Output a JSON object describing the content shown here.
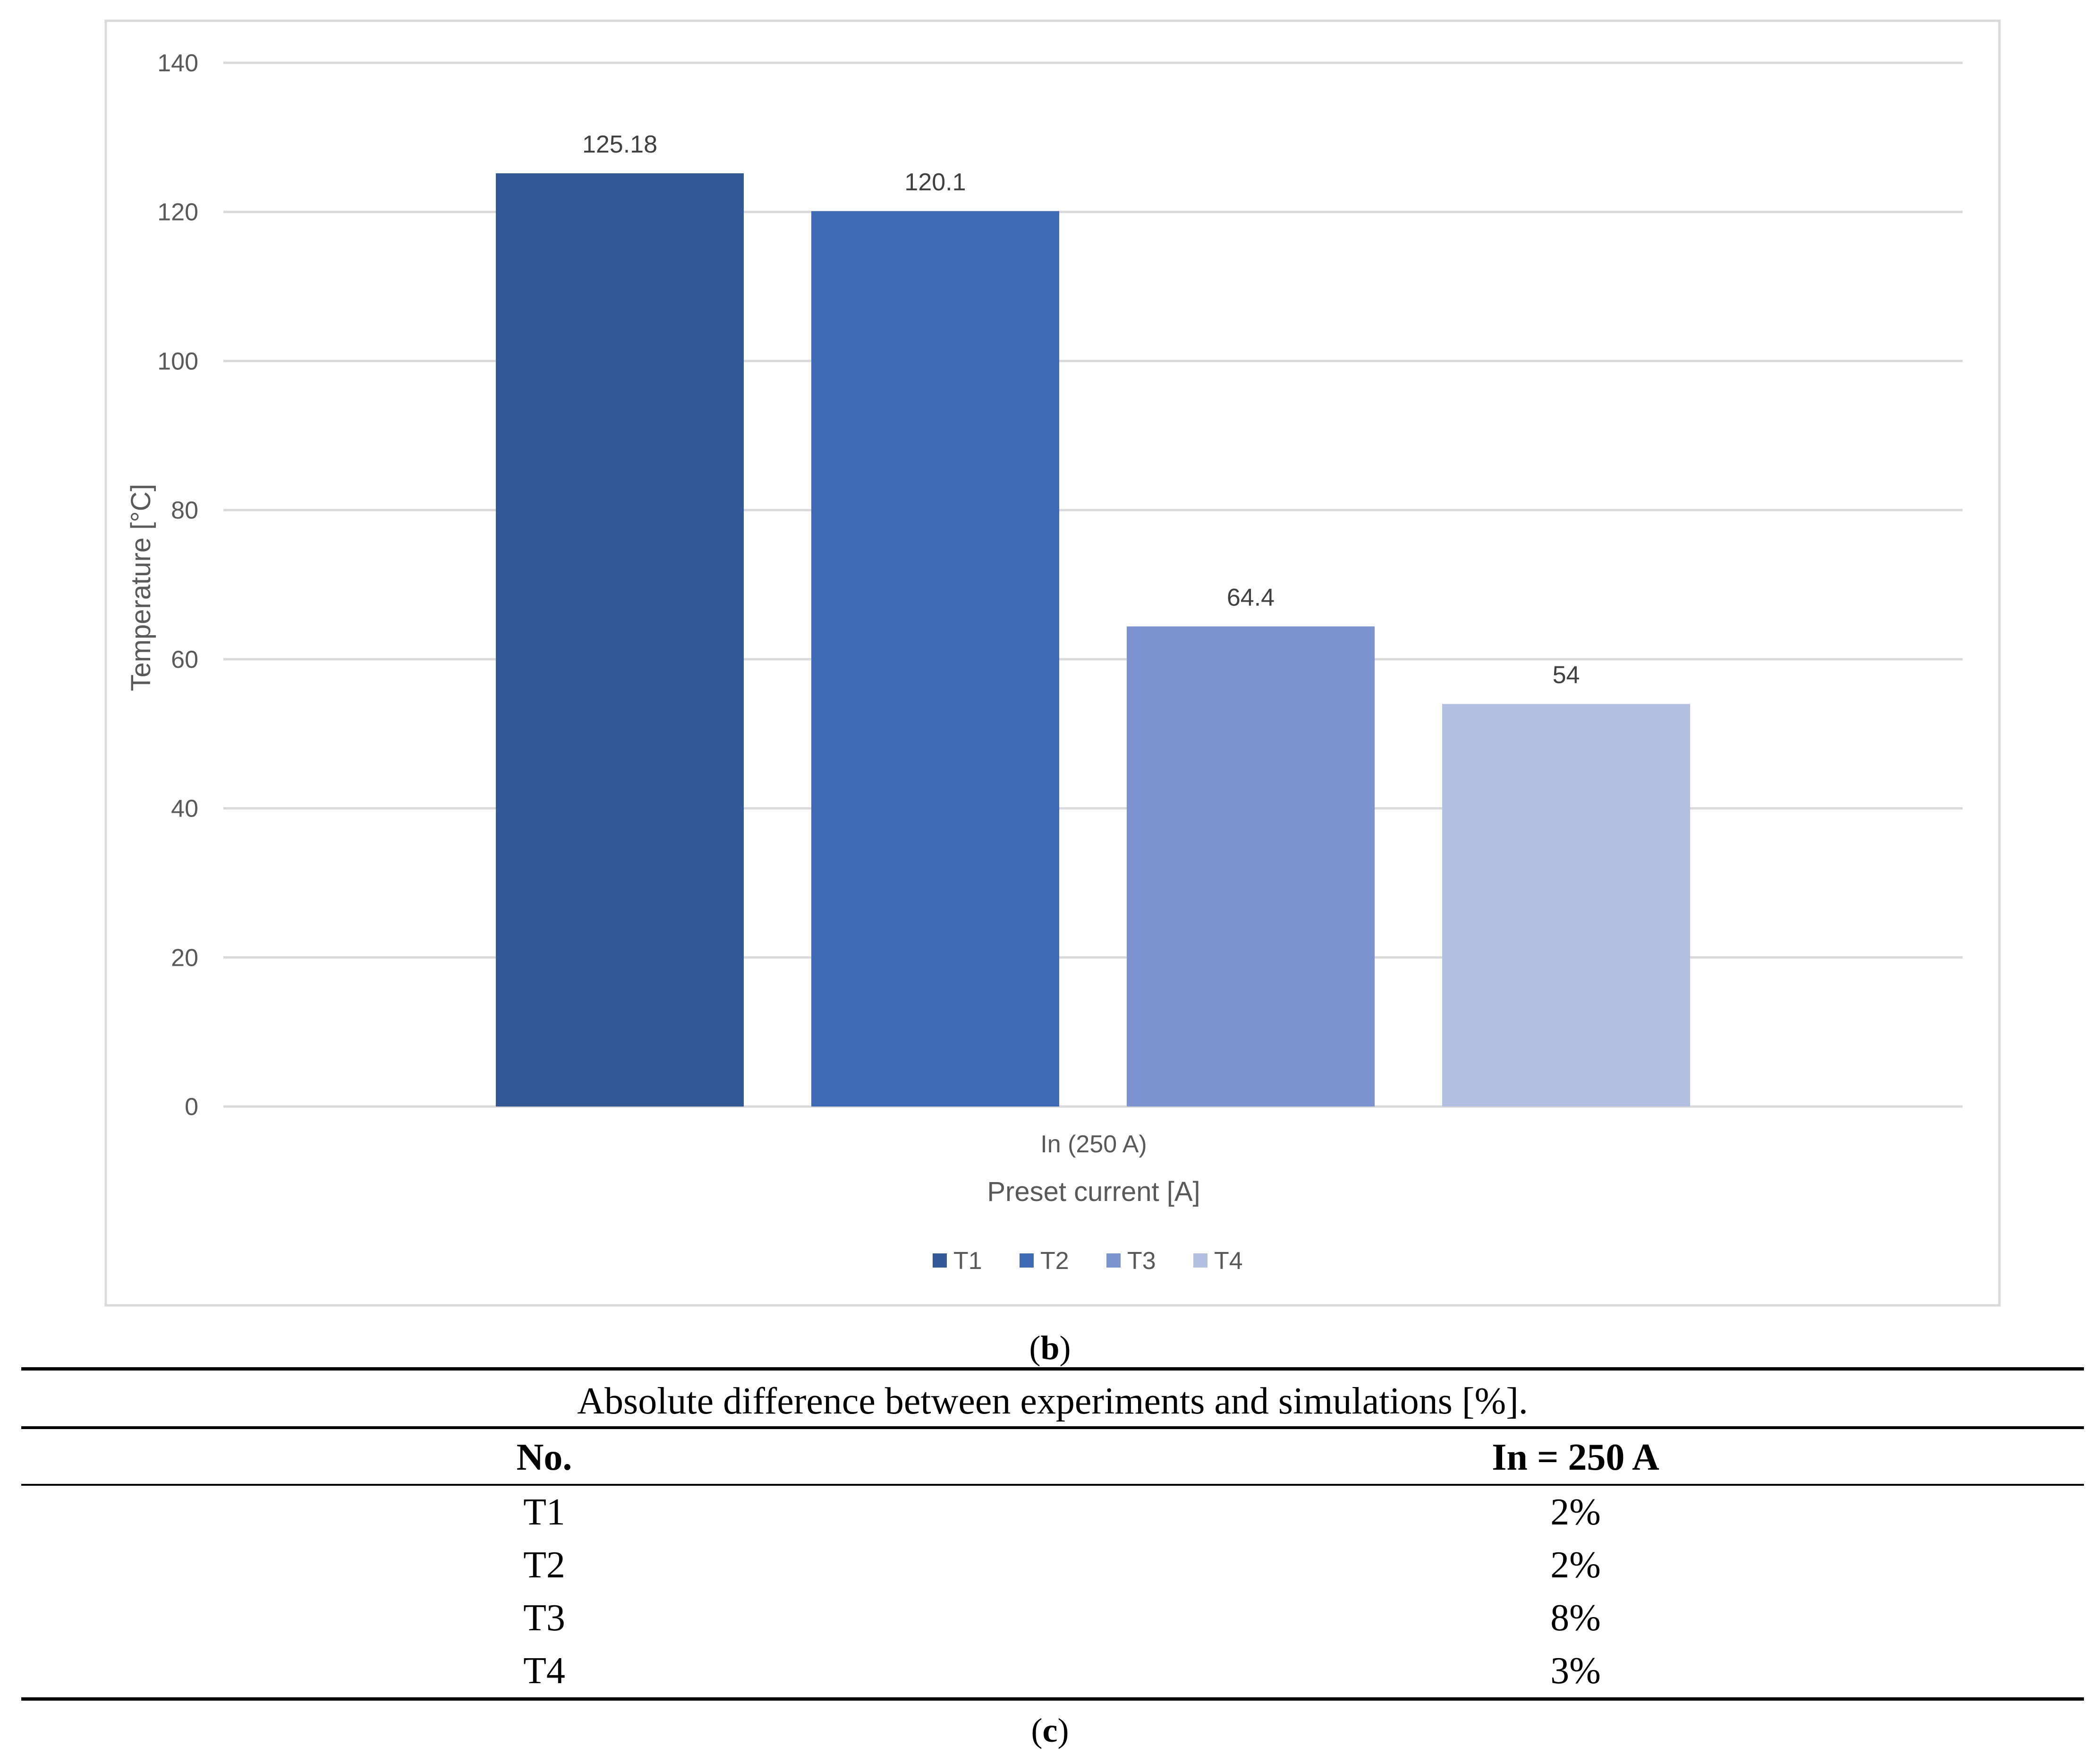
{
  "chart_data": {
    "type": "bar",
    "categories": [
      "In (250 A)"
    ],
    "series": [
      {
        "name": "T1",
        "values": [
          125.18
        ],
        "color": "#325896"
      },
      {
        "name": "T2",
        "values": [
          120.1
        ],
        "color": "#3f6ab6"
      },
      {
        "name": "T3",
        "values": [
          64.4
        ],
        "color": "#7b93cf"
      },
      {
        "name": "T4",
        "values": [
          54
        ],
        "color": "#b3bfe0"
      }
    ],
    "data_labels": [
      "125.18",
      "120.1",
      "64.4",
      "54"
    ],
    "title": "",
    "xlabel": "Preset current [A]",
    "ylabel": "Temperature [°C]",
    "ylim": [
      0,
      140
    ],
    "yticks": [
      0,
      20,
      40,
      60,
      80,
      100,
      120,
      140
    ],
    "grid": true,
    "legend": "bottom"
  },
  "captions": {
    "chart": "b",
    "table": "c"
  },
  "table": {
    "title": "Absolute difference between experiments and simulations [%].",
    "columns": [
      "No.",
      "In = 250 A"
    ],
    "rows": [
      [
        "T1",
        "2%"
      ],
      [
        "T2",
        "2%"
      ],
      [
        "T3",
        "8%"
      ],
      [
        "T4",
        "3%"
      ]
    ]
  }
}
